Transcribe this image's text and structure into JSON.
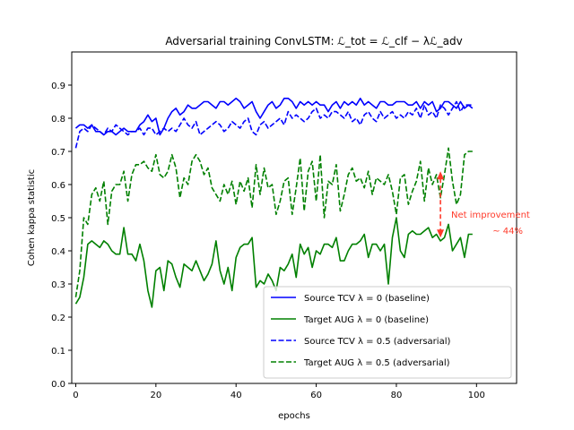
{
  "chart_data": {
    "type": "line",
    "title": "Adversarial training ConvLSTM: ℒ_tot = ℒ_clf − λℒ_adv",
    "xlabel": "epochs",
    "ylabel": "Cohen kappa statistic",
    "xlim": [
      -1,
      110
    ],
    "ylim": [
      0.0,
      1.0
    ],
    "xticks": [
      0,
      20,
      40,
      60,
      80,
      100
    ],
    "yticks": [
      0.0,
      0.1,
      0.2,
      0.3,
      0.4,
      0.5,
      0.6,
      0.7,
      0.8,
      0.9
    ],
    "grid": false,
    "legend_position": "lower-right",
    "series": [
      {
        "name": "Source TCV λ = 0 (baseline)",
        "color": "#0000ff",
        "style": "solid",
        "values": [
          0.77,
          0.78,
          0.78,
          0.77,
          0.78,
          0.76,
          0.76,
          0.75,
          0.76,
          0.76,
          0.75,
          0.76,
          0.77,
          0.76,
          0.76,
          0.76,
          0.78,
          0.79,
          0.81,
          0.79,
          0.8,
          0.75,
          0.77,
          0.8,
          0.82,
          0.83,
          0.81,
          0.82,
          0.84,
          0.83,
          0.83,
          0.84,
          0.85,
          0.85,
          0.84,
          0.83,
          0.85,
          0.85,
          0.84,
          0.85,
          0.86,
          0.85,
          0.83,
          0.84,
          0.85,
          0.82,
          0.8,
          0.82,
          0.84,
          0.85,
          0.83,
          0.84,
          0.86,
          0.86,
          0.85,
          0.83,
          0.85,
          0.84,
          0.85,
          0.84,
          0.85,
          0.84,
          0.84,
          0.82,
          0.84,
          0.85,
          0.83,
          0.85,
          0.84,
          0.85,
          0.84,
          0.86,
          0.84,
          0.85,
          0.84,
          0.83,
          0.85,
          0.85,
          0.84,
          0.84,
          0.85,
          0.85,
          0.85,
          0.84,
          0.84,
          0.85,
          0.83,
          0.85,
          0.84,
          0.85,
          0.82,
          0.83,
          0.85,
          0.85,
          0.84,
          0.83,
          0.85,
          0.83,
          0.84,
          0.83
        ]
      },
      {
        "name": "Target AUG λ = 0 (baseline)",
        "color": "#008000",
        "style": "solid",
        "values": [
          0.24,
          0.26,
          0.32,
          0.42,
          0.43,
          0.42,
          0.41,
          0.43,
          0.42,
          0.4,
          0.39,
          0.39,
          0.47,
          0.39,
          0.39,
          0.37,
          0.42,
          0.37,
          0.28,
          0.23,
          0.34,
          0.35,
          0.28,
          0.37,
          0.36,
          0.32,
          0.29,
          0.36,
          0.35,
          0.34,
          0.37,
          0.34,
          0.31,
          0.33,
          0.36,
          0.43,
          0.34,
          0.3,
          0.35,
          0.28,
          0.38,
          0.41,
          0.42,
          0.42,
          0.44,
          0.29,
          0.31,
          0.3,
          0.33,
          0.31,
          0.28,
          0.35,
          0.34,
          0.36,
          0.39,
          0.32,
          0.42,
          0.39,
          0.41,
          0.35,
          0.4,
          0.39,
          0.42,
          0.42,
          0.41,
          0.44,
          0.37,
          0.37,
          0.4,
          0.42,
          0.42,
          0.43,
          0.45,
          0.38,
          0.42,
          0.42,
          0.4,
          0.42,
          0.3,
          0.44,
          0.5,
          0.4,
          0.38,
          0.45,
          0.46,
          0.45,
          0.45,
          0.46,
          0.47,
          0.44,
          0.45,
          0.43,
          0.44,
          0.48,
          0.4,
          0.42,
          0.44,
          0.38,
          0.45,
          0.45
        ]
      },
      {
        "name": "Source TCV λ = 0.5 (adversarial)",
        "color": "#0000ff",
        "style": "dashed",
        "values": [
          0.71,
          0.76,
          0.77,
          0.76,
          0.78,
          0.77,
          0.76,
          0.75,
          0.77,
          0.76,
          0.78,
          0.77,
          0.76,
          0.75,
          0.76,
          0.76,
          0.77,
          0.75,
          0.77,
          0.77,
          0.75,
          0.76,
          0.77,
          0.76,
          0.77,
          0.76,
          0.78,
          0.8,
          0.78,
          0.77,
          0.79,
          0.75,
          0.76,
          0.77,
          0.78,
          0.79,
          0.78,
          0.76,
          0.77,
          0.79,
          0.78,
          0.77,
          0.79,
          0.8,
          0.76,
          0.75,
          0.78,
          0.79,
          0.77,
          0.78,
          0.79,
          0.8,
          0.78,
          0.82,
          0.8,
          0.81,
          0.8,
          0.79,
          0.8,
          0.82,
          0.83,
          0.8,
          0.81,
          0.8,
          0.82,
          0.82,
          0.81,
          0.8,
          0.82,
          0.79,
          0.8,
          0.78,
          0.81,
          0.82,
          0.8,
          0.79,
          0.82,
          0.8,
          0.81,
          0.82,
          0.8,
          0.81,
          0.8,
          0.82,
          0.81,
          0.83,
          0.8,
          0.84,
          0.81,
          0.82,
          0.8,
          0.84,
          0.83,
          0.81,
          0.83,
          0.85,
          0.82,
          0.84,
          0.84,
          0.84
        ]
      },
      {
        "name": "Target AUG λ = 0.5 (adversarial)",
        "color": "#008000",
        "style": "dashed",
        "values": [
          0.26,
          0.34,
          0.5,
          0.48,
          0.57,
          0.59,
          0.55,
          0.61,
          0.48,
          0.58,
          0.6,
          0.6,
          0.64,
          0.55,
          0.63,
          0.66,
          0.66,
          0.67,
          0.65,
          0.64,
          0.69,
          0.63,
          0.62,
          0.64,
          0.69,
          0.65,
          0.56,
          0.62,
          0.6,
          0.67,
          0.69,
          0.67,
          0.63,
          0.65,
          0.59,
          0.57,
          0.55,
          0.6,
          0.57,
          0.61,
          0.54,
          0.61,
          0.58,
          0.62,
          0.53,
          0.66,
          0.57,
          0.65,
          0.59,
          0.6,
          0.51,
          0.55,
          0.61,
          0.62,
          0.51,
          0.59,
          0.68,
          0.52,
          0.64,
          0.67,
          0.55,
          0.69,
          0.5,
          0.61,
          0.6,
          0.66,
          0.52,
          0.57,
          0.63,
          0.65,
          0.61,
          0.62,
          0.59,
          0.64,
          0.57,
          0.62,
          0.61,
          0.6,
          0.63,
          0.58,
          0.51,
          0.62,
          0.63,
          0.54,
          0.58,
          0.61,
          0.67,
          0.55,
          0.65,
          0.6,
          0.63,
          0.56,
          0.63,
          0.71,
          0.61,
          0.54,
          0.57,
          0.69,
          0.7,
          0.7
        ]
      }
    ],
    "annotation": {
      "text": "Net improvement\n~ 44%",
      "color": "#ff3a2a",
      "arrow_x": 91,
      "arrow_y_top": 0.64,
      "arrow_y_bottom": 0.44
    }
  }
}
